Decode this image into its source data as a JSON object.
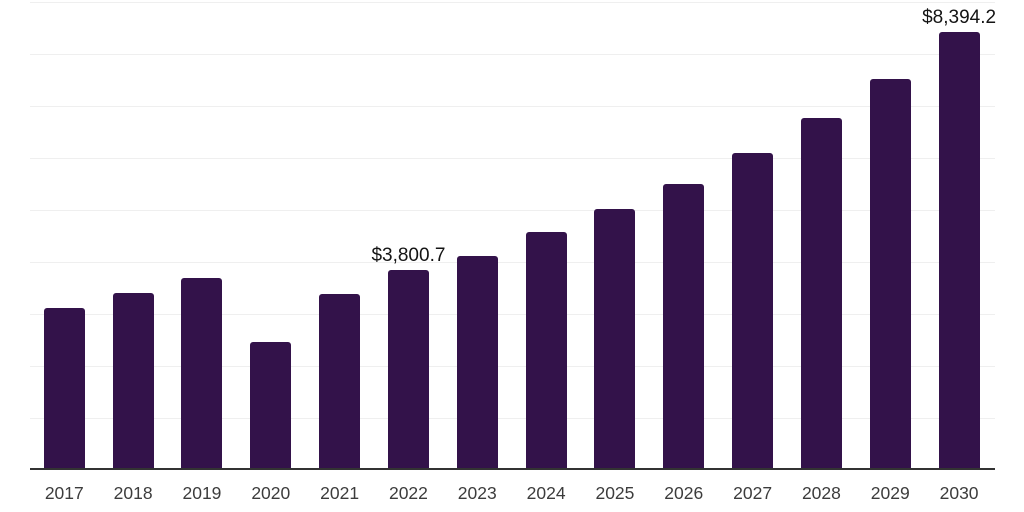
{
  "chart_data": {
    "type": "bar",
    "title": "",
    "xlabel": "",
    "ylabel": "",
    "categories": [
      "2017",
      "2018",
      "2019",
      "2020",
      "2021",
      "2022",
      "2023",
      "2024",
      "2025",
      "2026",
      "2027",
      "2028",
      "2029",
      "2030"
    ],
    "values": [
      3080,
      3370,
      3650,
      2430,
      3350,
      3800.7,
      4080,
      4540,
      4980,
      5470,
      6050,
      6730,
      7490,
      8394.2
    ],
    "value_labels": {
      "2022": "$3,800.7",
      "2030": "$8,394.2"
    },
    "ylim": [
      0,
      9000
    ],
    "grid_step": 1000,
    "grid": true,
    "legend": "none",
    "colors": {
      "bar": "#33124a",
      "axis": "#333333",
      "gridline": "#efefef",
      "value_label": "#141414",
      "tick_label": "#3c3c3c",
      "background": "#ffffff"
    }
  }
}
